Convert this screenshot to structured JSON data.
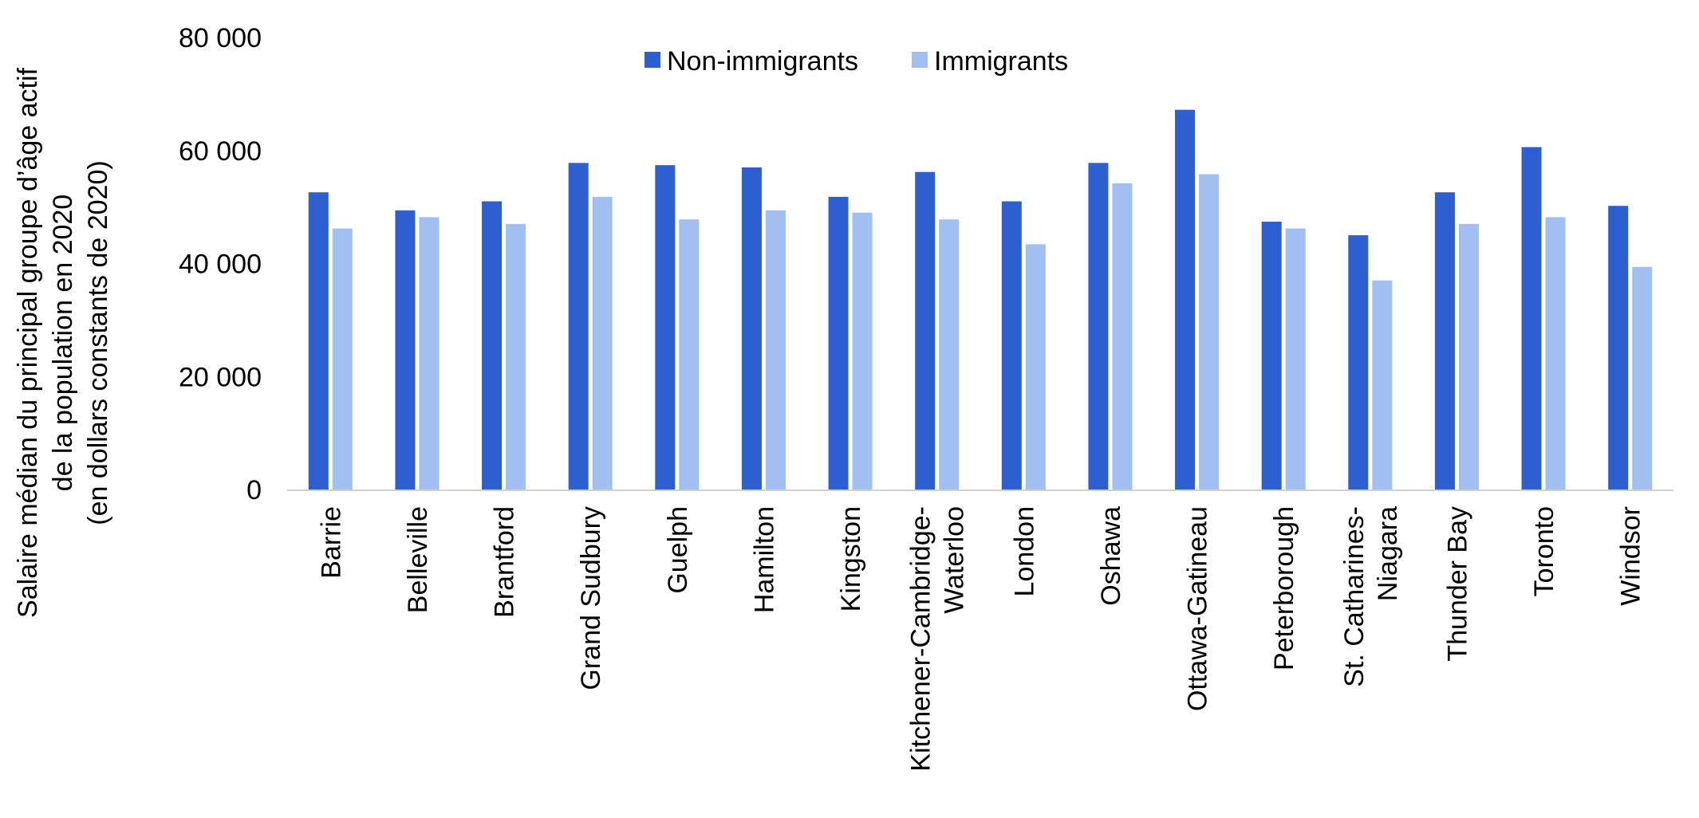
{
  "chart_data": {
    "type": "bar",
    "title": "",
    "ylabel": [
      "Salaire médian du principal groupe d’âge actif",
      "de la population en 2020",
      "(en dollars constants de 2020)"
    ],
    "xlabel": "",
    "ylim": [
      0,
      80000
    ],
    "yticks": [
      {
        "value": 0,
        "label": "0"
      },
      {
        "value": 20000,
        "label": "20 000"
      },
      {
        "value": 40000,
        "label": "40 000"
      },
      {
        "value": 60000,
        "label": "60 000"
      },
      {
        "value": 80000,
        "label": "80 000"
      }
    ],
    "grid": false,
    "legend_position": "top-center",
    "categories": [
      [
        "Barrie"
      ],
      [
        "Belleville"
      ],
      [
        "Brantford"
      ],
      [
        "Grand Sudbury"
      ],
      [
        "Guelph"
      ],
      [
        "Hamilton"
      ],
      [
        "Kingston"
      ],
      [
        "Kitchener-Cambridge-",
        "Waterloo"
      ],
      [
        "London"
      ],
      [
        "Oshawa"
      ],
      [
        "Ottawa-Gatineau"
      ],
      [
        "Peterborough"
      ],
      [
        "St. Catharines-",
        "Niagara"
      ],
      [
        "Thunder Bay"
      ],
      [
        "Toronto"
      ],
      [
        "Windsor"
      ]
    ],
    "series": [
      {
        "name": "Non-immigrants",
        "color": "#2e5fd0",
        "values": [
          52600,
          49400,
          51000,
          57800,
          57400,
          57000,
          51800,
          56200,
          51000,
          57800,
          67200,
          47400,
          45000,
          52600,
          60600,
          50200
        ]
      },
      {
        "name": "Immigrants",
        "color": "#a2bff2",
        "values": [
          46200,
          48200,
          47000,
          51800,
          47800,
          49400,
          49000,
          47800,
          43400,
          54200,
          55800,
          46200,
          37000,
          47000,
          48200,
          39400
        ]
      }
    ]
  }
}
